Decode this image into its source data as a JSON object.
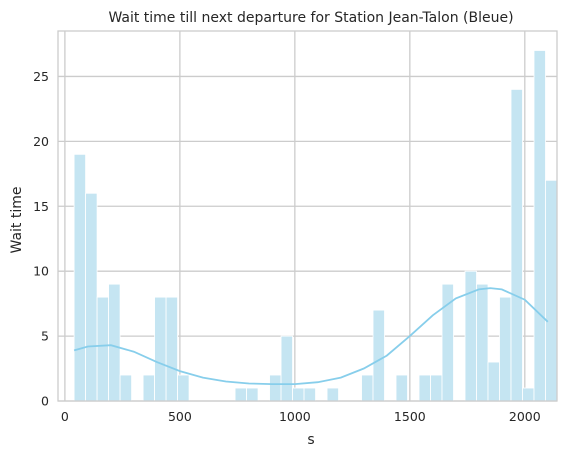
{
  "chart_data": {
    "type": "bar",
    "title": "Wait time till next departure for Station Jean-Talon (Bleue)",
    "xlabel": "s",
    "ylabel": "Wait time",
    "xlim": [
      -30,
      2140
    ],
    "ylim": [
      0,
      28.5
    ],
    "xticks": [
      0,
      500,
      1000,
      1500,
      2000
    ],
    "yticks": [
      0,
      5,
      10,
      15,
      20,
      25
    ],
    "grid": true,
    "bin_width": 50,
    "bins": [
      {
        "x0": 40,
        "count": 19
      },
      {
        "x0": 90,
        "count": 16
      },
      {
        "x0": 140,
        "count": 8
      },
      {
        "x0": 190,
        "count": 9
      },
      {
        "x0": 240,
        "count": 2
      },
      {
        "x0": 290,
        "count": 0
      },
      {
        "x0": 340,
        "count": 2
      },
      {
        "x0": 390,
        "count": 8
      },
      {
        "x0": 440,
        "count": 8
      },
      {
        "x0": 490,
        "count": 2
      },
      {
        "x0": 540,
        "count": 0
      },
      {
        "x0": 590,
        "count": 0
      },
      {
        "x0": 640,
        "count": 0
      },
      {
        "x0": 690,
        "count": 0
      },
      {
        "x0": 740,
        "count": 1
      },
      {
        "x0": 790,
        "count": 1
      },
      {
        "x0": 840,
        "count": 0
      },
      {
        "x0": 890,
        "count": 2
      },
      {
        "x0": 940,
        "count": 5
      },
      {
        "x0": 990,
        "count": 1
      },
      {
        "x0": 1040,
        "count": 1
      },
      {
        "x0": 1090,
        "count": 0
      },
      {
        "x0": 1140,
        "count": 1
      },
      {
        "x0": 1190,
        "count": 0
      },
      {
        "x0": 1240,
        "count": 0
      },
      {
        "x0": 1290,
        "count": 2
      },
      {
        "x0": 1340,
        "count": 7
      },
      {
        "x0": 1390,
        "count": 0
      },
      {
        "x0": 1440,
        "count": 2
      },
      {
        "x0": 1490,
        "count": 0
      },
      {
        "x0": 1540,
        "count": 2
      },
      {
        "x0": 1590,
        "count": 2
      },
      {
        "x0": 1640,
        "count": 9
      },
      {
        "x0": 1690,
        "count": 0
      },
      {
        "x0": 1740,
        "count": 10
      },
      {
        "x0": 1790,
        "count": 9
      },
      {
        "x0": 1840,
        "count": 3
      },
      {
        "x0": 1890,
        "count": 8
      },
      {
        "x0": 1940,
        "count": 24
      },
      {
        "x0": 1990,
        "count": 1
      },
      {
        "x0": 2040,
        "count": 27
      },
      {
        "x0": 2090,
        "count": 17
      }
    ],
    "kde": {
      "x": [
        40,
        100,
        200,
        300,
        400,
        500,
        600,
        700,
        800,
        900,
        1000,
        1100,
        1200,
        1300,
        1400,
        1500,
        1600,
        1700,
        1800,
        1850,
        1900,
        2000,
        2100
      ],
      "y": [
        3.9,
        4.2,
        4.3,
        3.8,
        3.0,
        2.3,
        1.8,
        1.5,
        1.35,
        1.3,
        1.3,
        1.45,
        1.8,
        2.5,
        3.5,
        5.0,
        6.6,
        7.9,
        8.6,
        8.7,
        8.6,
        7.8,
        6.1
      ]
    }
  }
}
